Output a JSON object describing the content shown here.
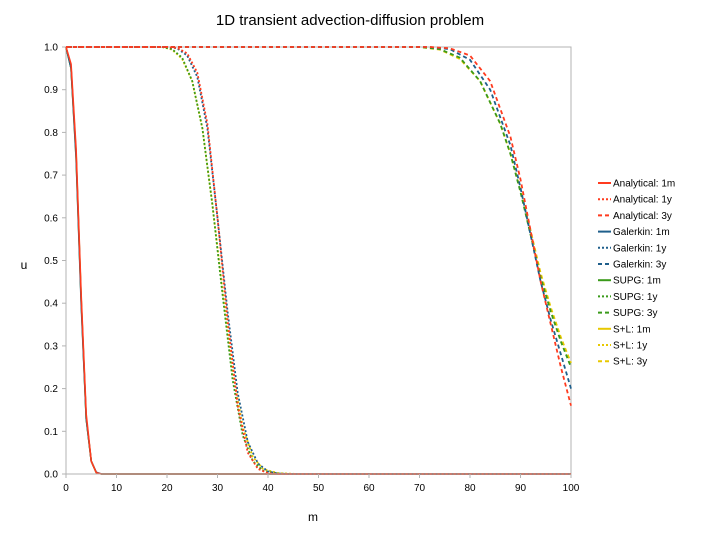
{
  "chart_data": {
    "type": "line",
    "title": "1D transient advection-diffusion problem",
    "xlabel": "m",
    "ylabel": "u",
    "xlim": [
      0,
      100
    ],
    "ylim": [
      0,
      1
    ],
    "grid": false,
    "legend_position": "right",
    "x_ticks": [
      "0",
      "10",
      "20",
      "30",
      "40",
      "50",
      "60",
      "70",
      "80",
      "90",
      "100"
    ],
    "y_ticks": [
      "0.0",
      "0.1",
      "0.2",
      "0.3",
      "0.4",
      "0.5",
      "0.6",
      "0.7",
      "0.8",
      "0.9",
      "1.0"
    ],
    "series": [
      {
        "name": "Analytical: 1m",
        "color": "#ff3b1f",
        "dash": "solid",
        "points": [
          [
            0,
            1.0
          ],
          [
            1,
            0.96
          ],
          [
            2,
            0.76
          ],
          [
            3,
            0.42
          ],
          [
            4,
            0.14
          ],
          [
            5,
            0.03
          ],
          [
            6,
            0.003
          ],
          [
            7,
            0.0
          ],
          [
            100,
            0.0
          ]
        ]
      },
      {
        "name": "Analytical: 1y",
        "color": "#ff3b1f",
        "dash": "dot",
        "points": [
          [
            0,
            1.0
          ],
          [
            20,
            1.0
          ],
          [
            22,
            0.998
          ],
          [
            24,
            0.985
          ],
          [
            26,
            0.94
          ],
          [
            28,
            0.82
          ],
          [
            30,
            0.6
          ],
          [
            32,
            0.36
          ],
          [
            34,
            0.16
          ],
          [
            36,
            0.05
          ],
          [
            38,
            0.012
          ],
          [
            40,
            0.002
          ],
          [
            42,
            0.0
          ],
          [
            100,
            0.0
          ]
        ]
      },
      {
        "name": "Analytical: 3y",
        "color": "#ff3b1f",
        "dash": "dash",
        "points": [
          [
            0,
            1.0
          ],
          [
            72,
            1.0
          ],
          [
            76,
            0.997
          ],
          [
            80,
            0.98
          ],
          [
            84,
            0.92
          ],
          [
            88,
            0.79
          ],
          [
            90,
            0.69
          ],
          [
            92,
            0.57
          ],
          [
            94,
            0.45
          ],
          [
            96,
            0.35
          ],
          [
            98,
            0.25
          ],
          [
            100,
            0.16
          ]
        ]
      },
      {
        "name": "Galerkin: 1m",
        "color": "#1f5f8b",
        "dash": "solid",
        "points": [
          [
            0,
            1.0
          ],
          [
            1,
            0.95
          ],
          [
            2,
            0.74
          ],
          [
            3,
            0.4
          ],
          [
            4,
            0.13
          ],
          [
            5,
            0.03
          ],
          [
            6,
            0.004
          ],
          [
            7,
            0.0
          ],
          [
            100,
            0.0
          ]
        ]
      },
      {
        "name": "Galerkin: 1y",
        "color": "#1f5f8b",
        "dash": "dot",
        "points": [
          [
            0,
            1.0
          ],
          [
            20,
            1.0
          ],
          [
            22,
            0.997
          ],
          [
            24,
            0.98
          ],
          [
            26,
            0.93
          ],
          [
            28,
            0.81
          ],
          [
            30,
            0.6
          ],
          [
            32,
            0.38
          ],
          [
            34,
            0.19
          ],
          [
            36,
            0.075
          ],
          [
            38,
            0.025
          ],
          [
            40,
            0.006
          ],
          [
            42,
            0.001
          ],
          [
            44,
            0.0
          ],
          [
            100,
            0.0
          ]
        ]
      },
      {
        "name": "Galerkin: 3y",
        "color": "#1f5f8b",
        "dash": "dash",
        "points": [
          [
            0,
            1.0
          ],
          [
            72,
            1.0
          ],
          [
            76,
            0.995
          ],
          [
            80,
            0.97
          ],
          [
            84,
            0.9
          ],
          [
            88,
            0.77
          ],
          [
            90,
            0.67
          ],
          [
            92,
            0.56
          ],
          [
            94,
            0.45
          ],
          [
            96,
            0.36
          ],
          [
            98,
            0.28
          ],
          [
            100,
            0.2
          ]
        ]
      },
      {
        "name": "SUPG: 1m",
        "color": "#3a9a1a",
        "dash": "solid",
        "points": [
          [
            0,
            1.0
          ],
          [
            1,
            0.95
          ],
          [
            2,
            0.75
          ],
          [
            3,
            0.41
          ],
          [
            4,
            0.13
          ],
          [
            5,
            0.03
          ],
          [
            6,
            0.003
          ],
          [
            7,
            0.0
          ],
          [
            100,
            0.0
          ]
        ]
      },
      {
        "name": "SUPG: 1y",
        "color": "#3a9a1a",
        "dash": "dot",
        "points": [
          [
            0,
            1.0
          ],
          [
            19,
            1.0
          ],
          [
            21,
            0.995
          ],
          [
            23,
            0.975
          ],
          [
            25,
            0.92
          ],
          [
            27,
            0.81
          ],
          [
            29,
            0.63
          ],
          [
            31,
            0.42
          ],
          [
            33,
            0.22
          ],
          [
            35,
            0.09
          ],
          [
            37,
            0.03
          ],
          [
            39,
            0.008
          ],
          [
            42,
            0.001
          ],
          [
            45,
            0.0
          ],
          [
            100,
            0.0
          ]
        ]
      },
      {
        "name": "SUPG: 3y",
        "color": "#3a9a1a",
        "dash": "dash",
        "points": [
          [
            0,
            1.0
          ],
          [
            70,
            1.0
          ],
          [
            74,
            0.995
          ],
          [
            78,
            0.975
          ],
          [
            82,
            0.92
          ],
          [
            86,
            0.82
          ],
          [
            88,
            0.75
          ],
          [
            90,
            0.66
          ],
          [
            92,
            0.56
          ],
          [
            94,
            0.46
          ],
          [
            96,
            0.38
          ],
          [
            98,
            0.31
          ],
          [
            100,
            0.25
          ]
        ]
      },
      {
        "name": "S+L: 1m",
        "color": "#e8c800",
        "dash": "solid",
        "points": [
          [
            0,
            1.0
          ],
          [
            1,
            0.95
          ],
          [
            2,
            0.74
          ],
          [
            3,
            0.41
          ],
          [
            4,
            0.13
          ],
          [
            5,
            0.03
          ],
          [
            6,
            0.003
          ],
          [
            7,
            0.0
          ],
          [
            100,
            0.0
          ]
        ]
      },
      {
        "name": "S+L: 1y",
        "color": "#e8c800",
        "dash": "dot",
        "points": [
          [
            0,
            1.0
          ],
          [
            19,
            1.0
          ],
          [
            21,
            0.994
          ],
          [
            23,
            0.972
          ],
          [
            25,
            0.92
          ],
          [
            27,
            0.81
          ],
          [
            29,
            0.63
          ],
          [
            31,
            0.43
          ],
          [
            33,
            0.24
          ],
          [
            35,
            0.11
          ],
          [
            37,
            0.04
          ],
          [
            39,
            0.012
          ],
          [
            42,
            0.002
          ],
          [
            46,
            0.0
          ],
          [
            100,
            0.0
          ]
        ]
      },
      {
        "name": "S+L: 3y",
        "color": "#e8c800",
        "dash": "dash",
        "points": [
          [
            0,
            1.0
          ],
          [
            70,
            1.0
          ],
          [
            74,
            0.994
          ],
          [
            78,
            0.972
          ],
          [
            82,
            0.92
          ],
          [
            86,
            0.82
          ],
          [
            88,
            0.75
          ],
          [
            90,
            0.665
          ],
          [
            92,
            0.57
          ],
          [
            94,
            0.47
          ],
          [
            96,
            0.39
          ],
          [
            98,
            0.32
          ],
          [
            100,
            0.26
          ]
        ]
      }
    ]
  }
}
